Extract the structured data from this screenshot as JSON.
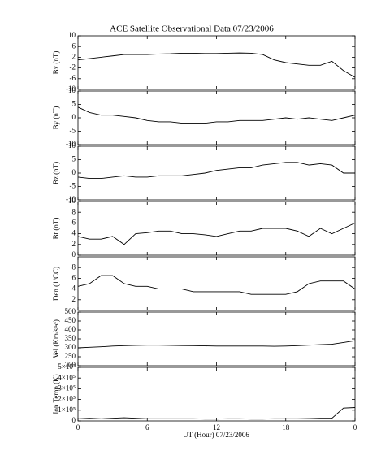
{
  "chart_data": [
    {
      "type": "line",
      "title": "ACE Satellite Observational Data   07/23/2006",
      "ylabel": "Bx (nT)",
      "color": "#000000",
      "x": [
        0,
        1,
        2,
        3,
        4,
        5,
        6,
        7,
        8,
        9,
        10,
        11,
        12,
        13,
        14,
        15,
        16,
        17,
        18,
        19,
        20,
        21,
        22,
        23,
        24
      ],
      "values": [
        1,
        1.5,
        2,
        2.5,
        3,
        3,
        3,
        3.2,
        3.3,
        3.5,
        3.5,
        3.4,
        3.4,
        3.5,
        3.6,
        3.5,
        3,
        1,
        0,
        -0.5,
        -1,
        -1,
        0.5,
        -3,
        -5.5
      ],
      "xlim": [
        0,
        24
      ],
      "ylim": [
        -10,
        10
      ],
      "yticks": [
        -10,
        -6,
        -2,
        2,
        6,
        10
      ]
    },
    {
      "type": "line",
      "ylabel": "By (nT)",
      "color": "#000000",
      "x": [
        0,
        1,
        2,
        3,
        4,
        5,
        6,
        7,
        8,
        9,
        10,
        11,
        12,
        13,
        14,
        15,
        16,
        17,
        18,
        19,
        20,
        21,
        22,
        23,
        24
      ],
      "values": [
        4,
        2,
        1,
        1,
        0.5,
        0,
        -1,
        -1.5,
        -1.5,
        -2,
        -2,
        -2,
        -1.5,
        -1.5,
        -1,
        -1,
        -1,
        -0.5,
        0,
        -0.5,
        0,
        -0.5,
        -1,
        0,
        1
      ],
      "xlim": [
        0,
        24
      ],
      "ylim": [
        -10,
        10
      ],
      "yticks": [
        -10,
        -5,
        0,
        5,
        10
      ]
    },
    {
      "type": "line",
      "ylabel": "Bz (nT)",
      "color": "#000000",
      "x": [
        0,
        1,
        2,
        3,
        4,
        5,
        6,
        7,
        8,
        9,
        10,
        11,
        12,
        13,
        14,
        15,
        16,
        17,
        18,
        19,
        20,
        21,
        22,
        23,
        24
      ],
      "values": [
        -1.5,
        -2,
        -2,
        -1.5,
        -1,
        -1.5,
        -1.5,
        -1,
        -1,
        -1,
        -0.5,
        0,
        1,
        1.5,
        2,
        2,
        3,
        3.5,
        4,
        4,
        3,
        3.5,
        3,
        0,
        0
      ],
      "xlim": [
        0,
        24
      ],
      "ylim": [
        -10,
        10
      ],
      "yticks": [
        -10,
        -5,
        0,
        5,
        10
      ]
    },
    {
      "type": "line",
      "ylabel": "Bt (nT)",
      "color": "#000000",
      "x": [
        0,
        1,
        2,
        3,
        4,
        5,
        6,
        7,
        8,
        9,
        10,
        11,
        12,
        13,
        14,
        15,
        16,
        17,
        18,
        19,
        20,
        21,
        22,
        23,
        24
      ],
      "values": [
        3.5,
        3,
        3,
        3.5,
        2,
        4,
        4.2,
        4.5,
        4.5,
        4,
        4,
        3.8,
        3.5,
        4,
        4.5,
        4.5,
        5,
        5,
        5,
        4.5,
        3.5,
        5,
        4,
        5,
        6
      ],
      "xlim": [
        0,
        24
      ],
      "ylim": [
        0,
        10
      ],
      "yticks": [
        0,
        2,
        4,
        6,
        8,
        10
      ]
    },
    {
      "type": "line",
      "ylabel": "Den (1/CC)",
      "color": "#000000",
      "x": [
        0,
        1,
        2,
        3,
        4,
        5,
        6,
        7,
        8,
        9,
        10,
        11,
        12,
        13,
        14,
        15,
        16,
        17,
        18,
        19,
        20,
        21,
        22,
        23,
        24
      ],
      "values": [
        4.5,
        5,
        6.5,
        6.5,
        5,
        4.5,
        4.5,
        4,
        4,
        4,
        3.5,
        3.5,
        3.5,
        3.5,
        3.5,
        3,
        3,
        3,
        3,
        3.5,
        5,
        5.5,
        5.5,
        5.5,
        4
      ],
      "xlim": [
        0,
        24
      ],
      "ylim": [
        0,
        10
      ],
      "yticks": [
        2,
        4,
        6,
        8
      ]
    },
    {
      "type": "line",
      "ylabel": "Vel (Km/sec)",
      "color": "#000000",
      "x": [
        0,
        1,
        2,
        3,
        4,
        5,
        6,
        7,
        8,
        9,
        10,
        11,
        12,
        13,
        14,
        15,
        16,
        17,
        18,
        19,
        20,
        21,
        22,
        23,
        24
      ],
      "values": [
        300,
        303,
        306,
        310,
        312,
        314,
        315,
        315,
        314,
        313,
        312,
        311,
        310,
        310,
        310,
        310,
        310,
        309,
        310,
        312,
        315,
        318,
        320,
        330,
        340
      ],
      "xlim": [
        0,
        24
      ],
      "ylim": [
        200,
        500
      ],
      "yticks": [
        200,
        250,
        300,
        350,
        400,
        450,
        500
      ]
    },
    {
      "type": "line",
      "ylabel": "Ion Temp (K)",
      "xlabel": "UT (Hour)  07/23/2006",
      "color": "#000000",
      "x": [
        0,
        1,
        2,
        3,
        4,
        5,
        6,
        7,
        8,
        9,
        10,
        11,
        12,
        13,
        14,
        15,
        16,
        17,
        18,
        19,
        20,
        21,
        22,
        23,
        24
      ],
      "values": [
        20000,
        25000,
        20000,
        25000,
        30000,
        25000,
        20000,
        20000,
        20000,
        20000,
        20000,
        18000,
        18000,
        20000,
        20000,
        18000,
        18000,
        20000,
        20000,
        20000,
        22000,
        25000,
        25000,
        120000,
        125000
      ],
      "xlim": [
        0,
        24
      ],
      "ylim": [
        0,
        500000
      ],
      "xticks": [
        0,
        6,
        12,
        18,
        {
          "value": 24,
          "label": "0"
        }
      ],
      "yticks": [
        0,
        {
          "value": 100000,
          "label": "1×10⁵"
        },
        {
          "value": 200000,
          "label": "2×10⁵"
        },
        {
          "value": 300000,
          "label": "3×10⁵"
        },
        {
          "value": 400000,
          "label": "4×10⁵"
        },
        {
          "value": 500000,
          "label": "5×10⁵"
        }
      ]
    }
  ]
}
